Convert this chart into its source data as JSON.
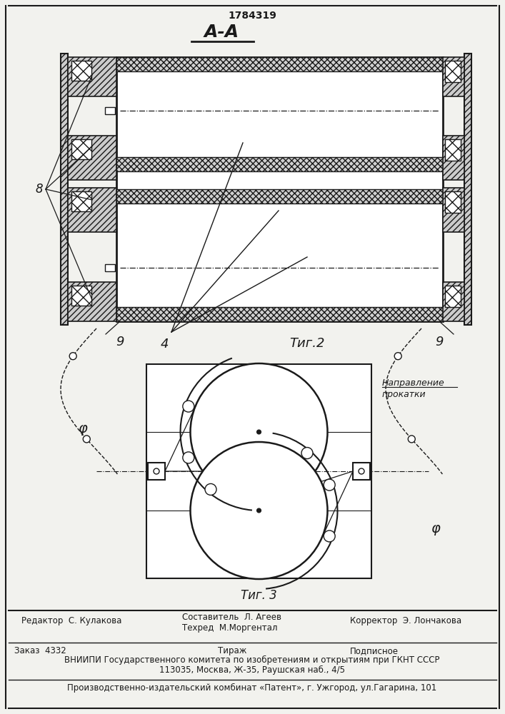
{
  "title_number": "1784319",
  "fig2_label": "Τиг.2",
  "fig3_label": "Τиг. 3",
  "section_label": "А-А",
  "label_8": "8",
  "label_9_left": "9",
  "label_9_right": "9",
  "label_4": "4",
  "label_phi_left": "φ",
  "label_phi_right": "φ",
  "direction_line1": "Направление",
  "direction_line2": "прокатки",
  "footer_editor": "Редактор  С. Кулакова",
  "footer_author": "Составитель  Л. Агеев",
  "footer_techred": "Техред  М.Моргентал",
  "footer_corrector": "Корректор  Э. Лончакова",
  "footer_order": "Заказ  4332",
  "footer_tiraj": "Тираж",
  "footer_podp": "Подписное",
  "footer_vniip": "ВНИИПИ Государственного комитета по изобретениям и открытиям при ГКНТ СССР",
  "footer_addr": "113035, Москва, Ж-35, Раушская наб., 4/5",
  "footer_patent": "Производственно-издательский комбинат «Патент», г. Ужгород, ул.Гагарина, 101",
  "bg_color": "#f2f2ee",
  "line_color": "#1a1a1a",
  "hatch_color": "#444444"
}
